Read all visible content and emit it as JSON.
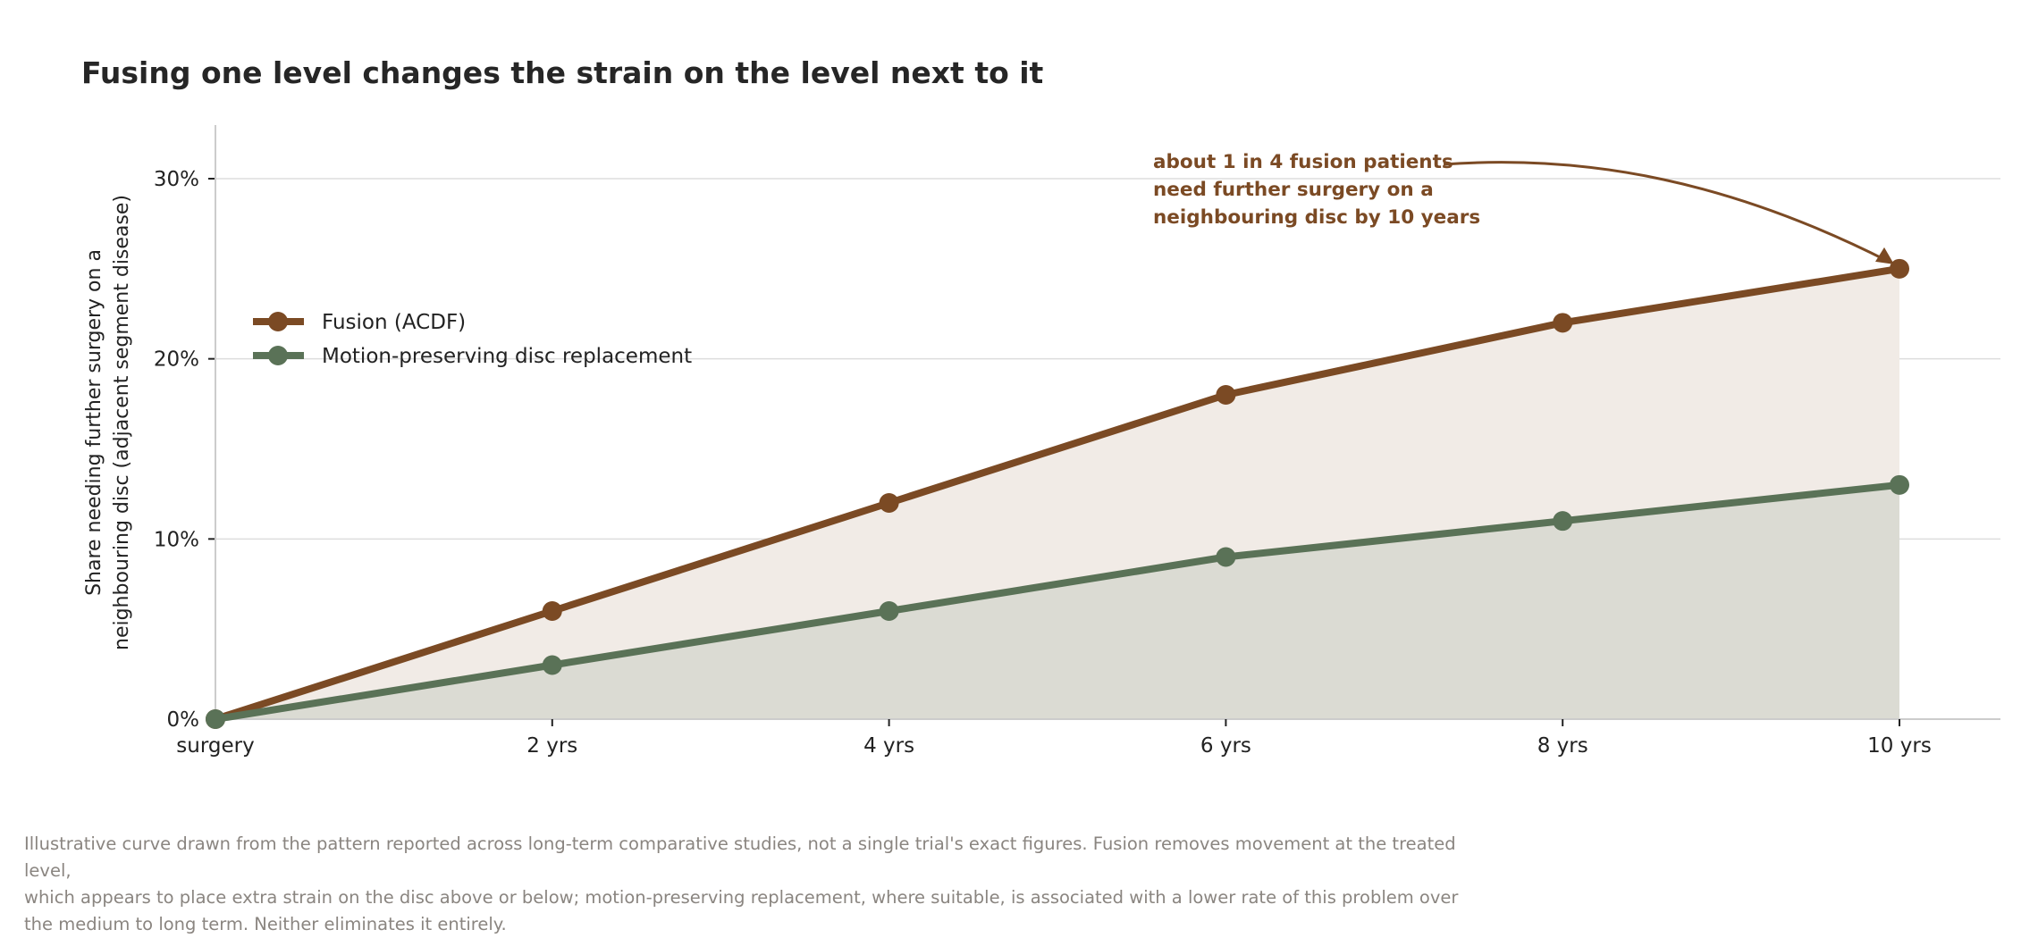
{
  "chart_data": {
    "type": "line",
    "title": "Fusing one level changes the strain on the level next to it",
    "ylabel": "Share needing further surgery on a neighbouring disc (adjacent segment disease)",
    "ylabel_lines": [
      "Share needing further surgery on a",
      "neighbouring disc (adjacent segment disease)"
    ],
    "xlabel": "",
    "categories": [
      "surgery",
      "2 yrs",
      "4 yrs",
      "6 yrs",
      "8 yrs",
      "10 yrs"
    ],
    "x": [
      0,
      2,
      4,
      6,
      8,
      10
    ],
    "ylim": [
      0,
      30
    ],
    "yticks": [
      0,
      10,
      20,
      30
    ],
    "ytick_labels": [
      "0%",
      "10%",
      "20%",
      "30%"
    ],
    "grid": "horizontal",
    "legend_position": "upper-left",
    "series": [
      {
        "name": "Fusion (ACDF)",
        "color": "#7b4a24",
        "fill": "#f1ebe6",
        "values": [
          0,
          6,
          12,
          18,
          22,
          25
        ]
      },
      {
        "name": "Motion-preserving disc replacement",
        "color": "#5a7257",
        "fill": "#dbdbd3",
        "values": [
          0,
          3,
          6,
          9,
          11,
          13
        ]
      }
    ],
    "annotation": {
      "lines": [
        "about 1 in 4 fusion patients",
        "need further surgery on a",
        "neighbouring disc by 10 years"
      ],
      "color": "#7b4a24",
      "target_series": 0,
      "target_index": 5
    }
  },
  "footnote": {
    "lines": [
      "Illustrative curve drawn from the pattern reported across long-term comparative studies, not a single trial's exact figures. Fusion removes movement at the treated level,",
      "which appears to place extra strain on the disc above or below; motion-preserving replacement, where suitable, is associated with a lower rate of this problem over",
      "the medium to long term. Neither eliminates it entirely."
    ]
  }
}
